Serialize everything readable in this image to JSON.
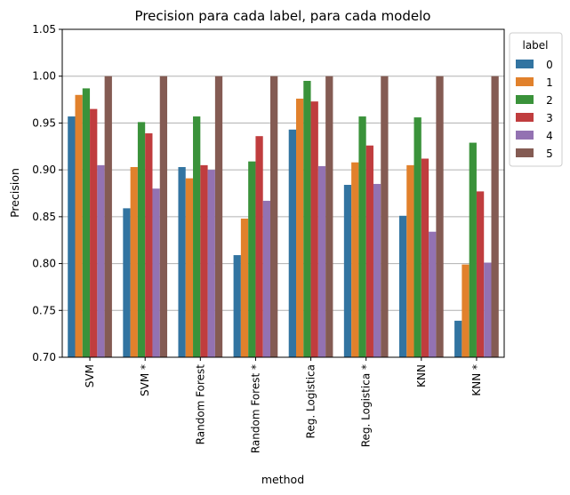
{
  "chart_data": {
    "type": "bar",
    "title": "Precision para cada label, para cada modelo",
    "xlabel": "method",
    "ylabel": "Precision",
    "ylim": [
      0.7,
      1.05
    ],
    "yticks": [
      "0.70",
      "0.75",
      "0.80",
      "0.85",
      "0.90",
      "0.95",
      "1.00",
      "1.05"
    ],
    "grid": "y",
    "legend_position": "outside-top-right",
    "legend_title": "label",
    "categories": [
      "SVM",
      "SVM *",
      "Random Forest",
      "Random Forest *",
      "Reg. Logistica",
      "Reg. Logistica *",
      "KNN",
      "KNN *"
    ],
    "series": [
      {
        "name": "0",
        "color": "#3274a1",
        "values": [
          0.957,
          0.859,
          0.903,
          0.809,
          0.943,
          0.884,
          0.851,
          0.739
        ]
      },
      {
        "name": "1",
        "color": "#e1812c",
        "values": [
          0.98,
          0.903,
          0.891,
          0.848,
          0.976,
          0.908,
          0.905,
          0.799
        ]
      },
      {
        "name": "2",
        "color": "#3a923a",
        "values": [
          0.987,
          0.951,
          0.957,
          0.909,
          0.995,
          0.957,
          0.956,
          0.929
        ]
      },
      {
        "name": "3",
        "color": "#c03d3e",
        "values": [
          0.965,
          0.939,
          0.905,
          0.936,
          0.973,
          0.926,
          0.912,
          0.877
        ]
      },
      {
        "name": "4",
        "color": "#9372b2",
        "values": [
          0.905,
          0.88,
          0.9,
          0.867,
          0.904,
          0.885,
          0.834,
          0.801
        ]
      },
      {
        "name": "5",
        "color": "#845b53",
        "values": [
          1.0,
          1.0,
          1.0,
          1.0,
          1.0,
          1.0,
          1.0,
          1.0
        ]
      }
    ]
  }
}
